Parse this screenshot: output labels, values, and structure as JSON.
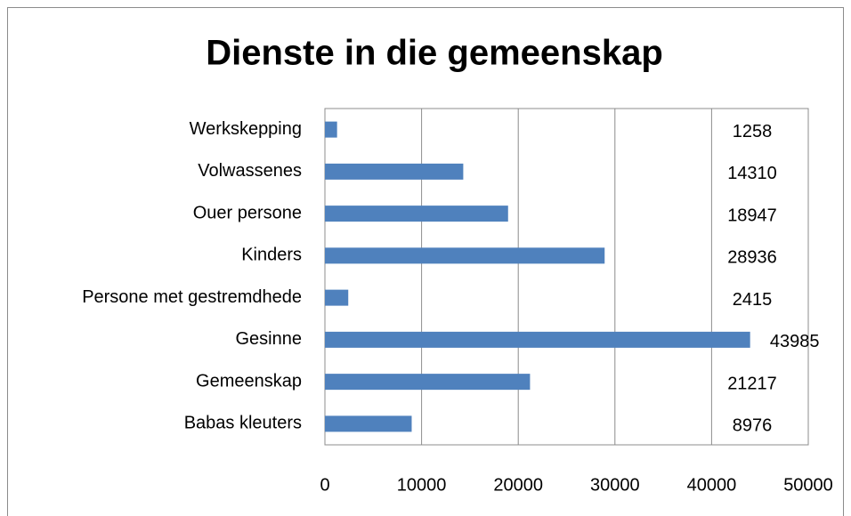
{
  "chart_data": {
    "type": "bar",
    "orientation": "horizontal",
    "title": "Dienste in die gemeenskap",
    "categories": [
      "Werkskepping",
      "Volwassenes",
      "Ouer persone",
      "Kinders",
      "Persone met gestremdhede",
      "Gesinne",
      "Gemeenskap",
      "Babas kleuters"
    ],
    "values": [
      1258,
      14310,
      18947,
      28936,
      2415,
      43985,
      21217,
      8976
    ],
    "color": "#4f81bd",
    "xlim": [
      0,
      50000
    ],
    "xticks": [
      0,
      10000,
      20000,
      30000,
      40000,
      50000
    ],
    "grid": true
  }
}
